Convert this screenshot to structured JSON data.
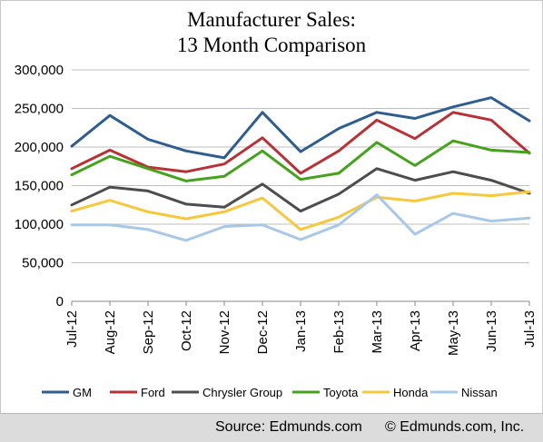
{
  "chart_data": {
    "type": "line",
    "title": "Manufacturer Sales:",
    "subtitle": "13 Month Comparison",
    "categories": [
      "Jul-12",
      "Aug-12",
      "Sep-12",
      "Oct-12",
      "Nov-12",
      "Dec-12",
      "Jan-13",
      "Feb-13",
      "Mar-13",
      "Apr-13",
      "May-13",
      "Jun-13",
      "Jul-13"
    ],
    "ylim": [
      0,
      300000
    ],
    "yticks": [
      0,
      50000,
      100000,
      150000,
      200000,
      250000,
      300000
    ],
    "ytick_labels": [
      "0",
      "50,000",
      "100,000",
      "150,000",
      "200,000",
      "250,000",
      "300,000"
    ],
    "grid": true,
    "legend_position": "bottom",
    "series": [
      {
        "name": "GM",
        "color": "#2e5d8f",
        "values": [
          201000,
          241000,
          210000,
          195000,
          186000,
          245000,
          194000,
          224000,
          245000,
          237000,
          252000,
          264000,
          234000
        ]
      },
      {
        "name": "Ford",
        "color": "#b83135",
        "values": [
          172000,
          196000,
          174000,
          168000,
          178000,
          212000,
          166000,
          195000,
          235000,
          211000,
          245000,
          235000,
          192000
        ]
      },
      {
        "name": "Chrysler Group",
        "color": "#4d4d4d",
        "values": [
          125000,
          148000,
          143000,
          126000,
          122000,
          152000,
          117000,
          139000,
          172000,
          157000,
          168000,
          157000,
          140000
        ]
      },
      {
        "name": "Toyota",
        "color": "#44a21b",
        "values": [
          164000,
          188000,
          172000,
          156000,
          162000,
          195000,
          158000,
          166000,
          206000,
          176000,
          208000,
          196000,
          193000
        ]
      },
      {
        "name": "Honda",
        "color": "#f7c83b",
        "values": [
          117000,
          131000,
          116000,
          107000,
          116000,
          134000,
          93000,
          109000,
          135000,
          130000,
          140000,
          137000,
          142000
        ]
      },
      {
        "name": "Nissan",
        "color": "#a8c8e8",
        "values": [
          99000,
          99000,
          93000,
          79000,
          97000,
          99000,
          80000,
          99000,
          138000,
          87000,
          114000,
          104000,
          108000
        ]
      }
    ]
  },
  "footer": {
    "source": "Source: Edmunds.com",
    "copyright": "© Edmunds.com, Inc."
  },
  "colors": {
    "gridline": "#bfbfbf",
    "footer_bg": "#dcdcdc"
  }
}
